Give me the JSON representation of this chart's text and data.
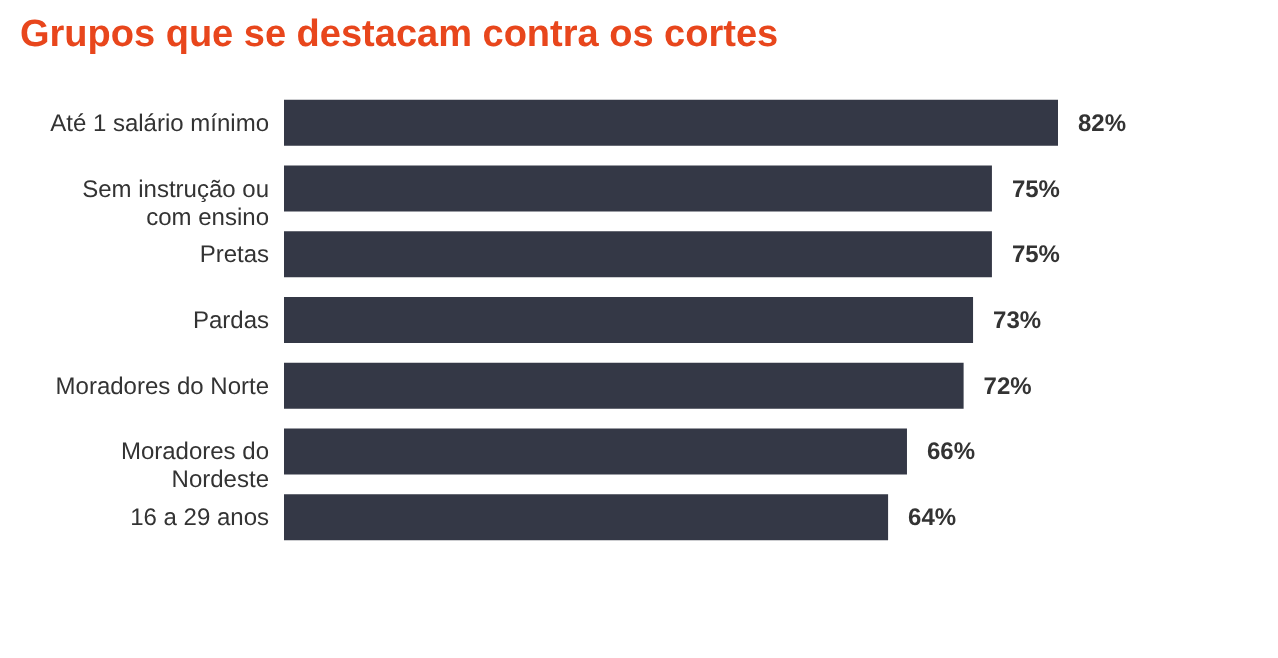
{
  "chart_data": {
    "type": "bar",
    "orientation": "horizontal",
    "title": "Grupos que se destacam contra os cortes",
    "categories": [
      "Até 1 salário mínimo",
      "Sem instrução ou com ensino",
      "Pretas",
      "Pardas",
      "Moradores do Norte",
      "Moradores do Nordeste",
      "16 a 29 anos"
    ],
    "values": [
      82,
      75,
      75,
      73,
      72,
      66,
      64
    ],
    "value_labels": [
      "82%",
      "75%",
      "75%",
      "73%",
      "72%",
      "66%",
      "64%"
    ],
    "color": "#343846"
  }
}
